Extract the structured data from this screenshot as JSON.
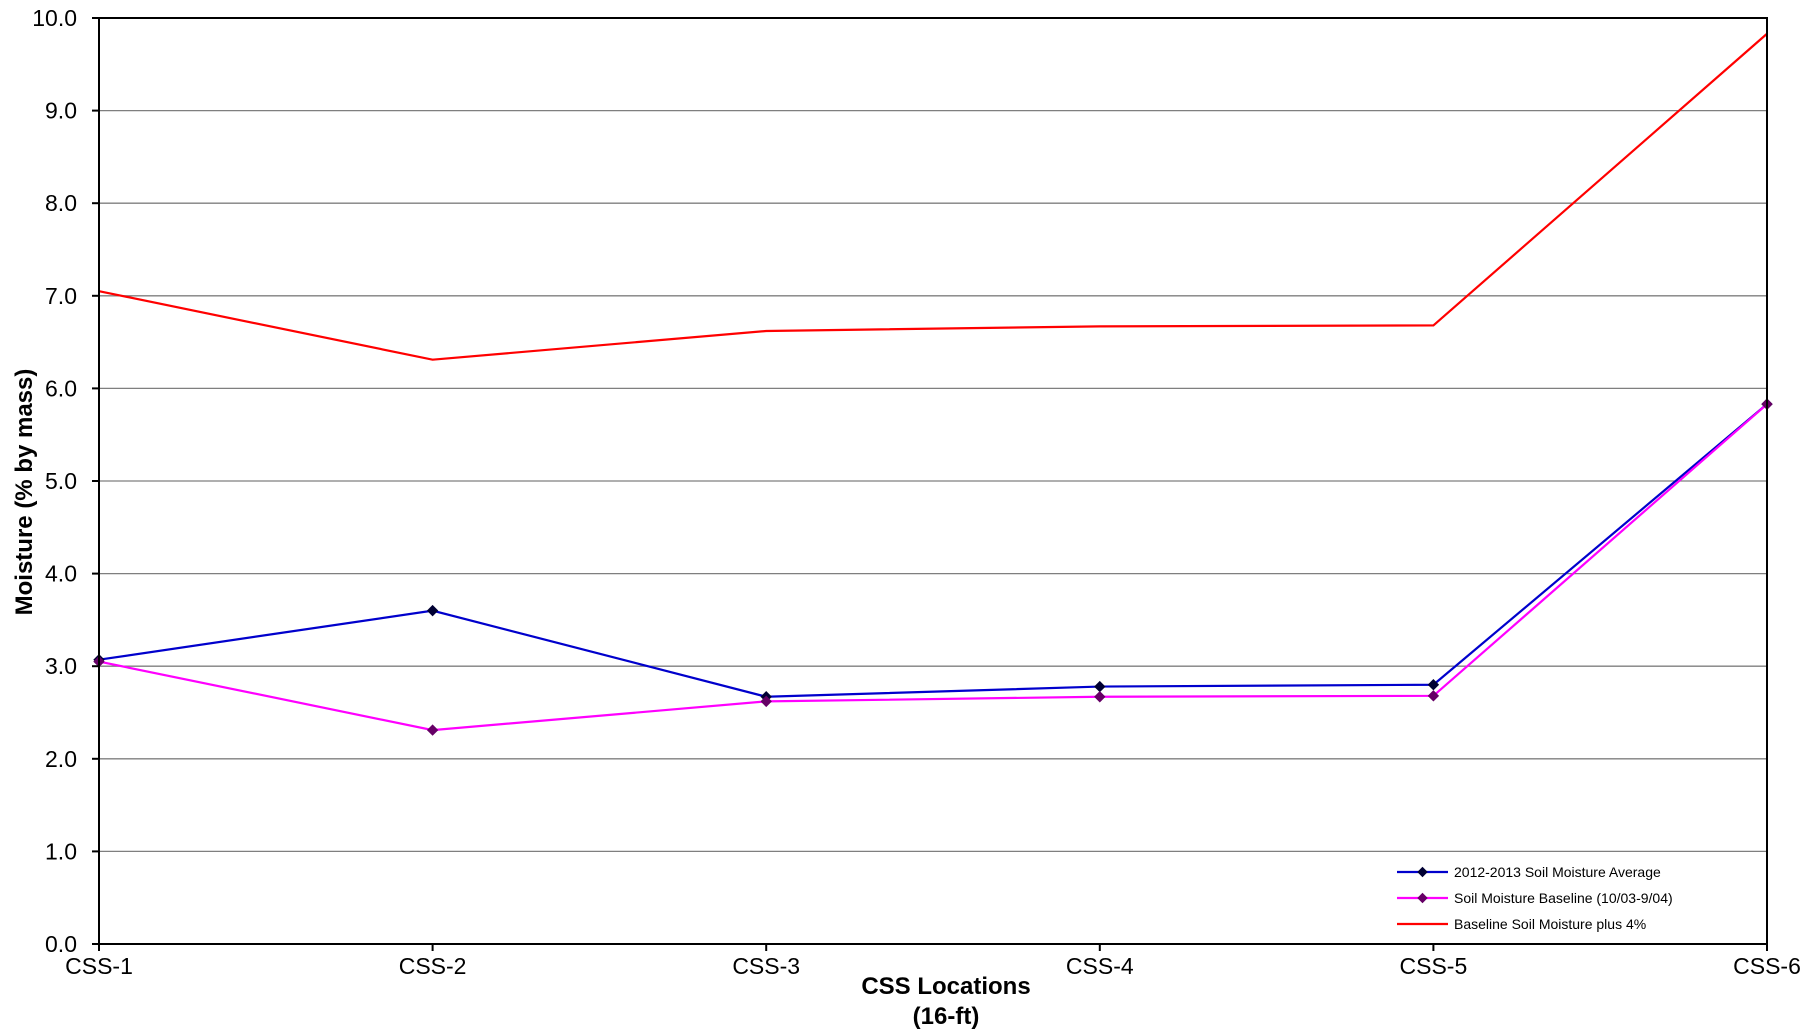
{
  "chart_data": {
    "type": "line",
    "title": "",
    "xlabel": "CSS Locations",
    "xlabel_sub": "(16-ft)",
    "ylabel": "Moisture (% by mass)",
    "categories": [
      "CSS-1",
      "CSS-2",
      "CSS-3",
      "CSS-4",
      "CSS-5",
      "CSS-6"
    ],
    "ylim": [
      0,
      10
    ],
    "yticks": [
      "0.0",
      "1.0",
      "2.0",
      "3.0",
      "4.0",
      "5.0",
      "6.0",
      "7.0",
      "8.0",
      "9.0",
      "10.0"
    ],
    "grid": true,
    "legend_position": "bottom-right",
    "series": [
      {
        "name": "2012-2013 Soil Moisture Average",
        "color": "#0000CC",
        "marker": "diamond",
        "marker_color": "#000033",
        "values": [
          3.07,
          3.6,
          2.67,
          2.78,
          2.8,
          5.83
        ]
      },
      {
        "name": "Soil Moisture Baseline (10/03-9/04)",
        "color": "#FF00FF",
        "marker": "diamond",
        "marker_color": "#660066",
        "values": [
          3.05,
          2.31,
          2.62,
          2.67,
          2.68,
          5.83
        ]
      },
      {
        "name": "Baseline Soil Moisture plus 4%",
        "color": "#FF0000",
        "marker": "none",
        "values": [
          7.05,
          6.31,
          6.62,
          6.67,
          6.68,
          9.83
        ]
      }
    ]
  }
}
